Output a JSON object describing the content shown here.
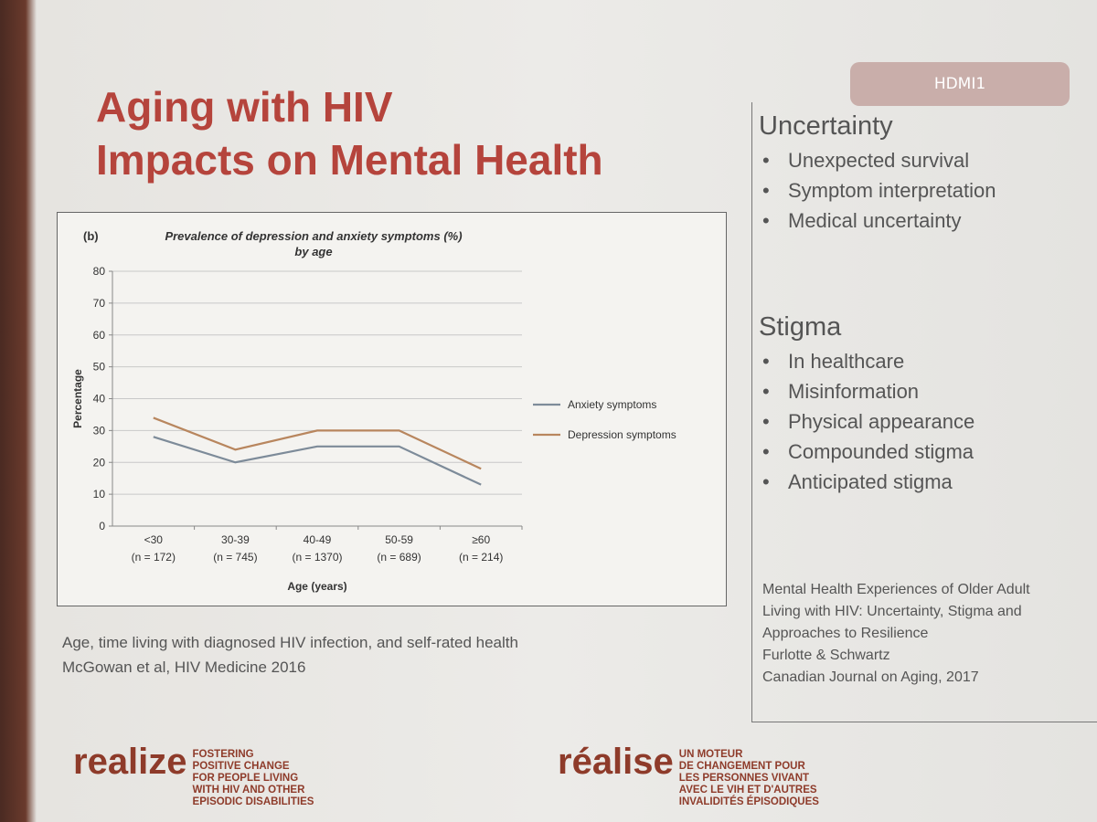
{
  "slide": {
    "title_lines": [
      "Aging with HIV",
      "Impacts on Mental Health"
    ],
    "input_label": "HDMI1",
    "sections": [
      {
        "heading": "Uncertainty",
        "bullets": [
          "Unexpected survival",
          "Symptom interpretation",
          "Medical uncertainty"
        ]
      },
      {
        "heading": "Stigma",
        "bullets": [
          "In healthcare",
          "Misinformation",
          "Physical appearance",
          "Compounded stigma",
          "Anticipated stigma"
        ]
      }
    ],
    "reference_right": [
      "Mental Health Experiences of Older Adult",
      "Living with HIV: Uncertainty, Stigma and",
      "Approaches to Resilience",
      "Furlotte & Schwartz",
      "Canadian Journal on Aging, 2017"
    ],
    "reference_left": [
      "Age, time living with diagnosed HIV infection, and self-rated health",
      "McGowan et al, HIV Medicine 2016"
    ],
    "logos": [
      {
        "name": "realize",
        "tagline": [
          "FOSTERING",
          "POSITIVE CHANGE",
          "FOR PEOPLE LIVING",
          "WITH HIV AND OTHER",
          "EPISODIC DISABILITIES"
        ]
      },
      {
        "name": "réalise",
        "tagline": [
          "UN MOTEUR",
          "DE CHANGEMENT POUR",
          "LES PERSONNES VIVANT",
          "AVEC LE VIH ET D'AUTRES",
          "INVALIDITÉS ÉPISODIQUES"
        ]
      }
    ]
  },
  "chart_data": {
    "type": "line",
    "panel_label": "(b)",
    "title": "Prevalence of depression and anxiety symptoms (%) by age",
    "x_label": "Age (years)",
    "y_label": "Percentage",
    "categories": [
      [
        "<30",
        "(n = 172)"
      ],
      [
        "30-39",
        "(n = 745)"
      ],
      [
        "40-49",
        "(n = 1370)"
      ],
      [
        "50-59",
        "(n = 689)"
      ],
      [
        "≥60",
        "(n = 214)"
      ]
    ],
    "series": [
      {
        "name": "Anxiety symptoms",
        "color": "#7d8b99",
        "values": [
          28,
          20,
          25,
          25,
          13
        ]
      },
      {
        "name": "Depression symptoms",
        "color": "#b8865e",
        "values": [
          34,
          24,
          30,
          30,
          18
        ]
      }
    ],
    "ylim": [
      0,
      80
    ],
    "yticks": [
      0,
      10,
      20,
      30,
      40,
      50,
      60,
      70,
      80
    ],
    "grid": true,
    "legend": "right"
  }
}
